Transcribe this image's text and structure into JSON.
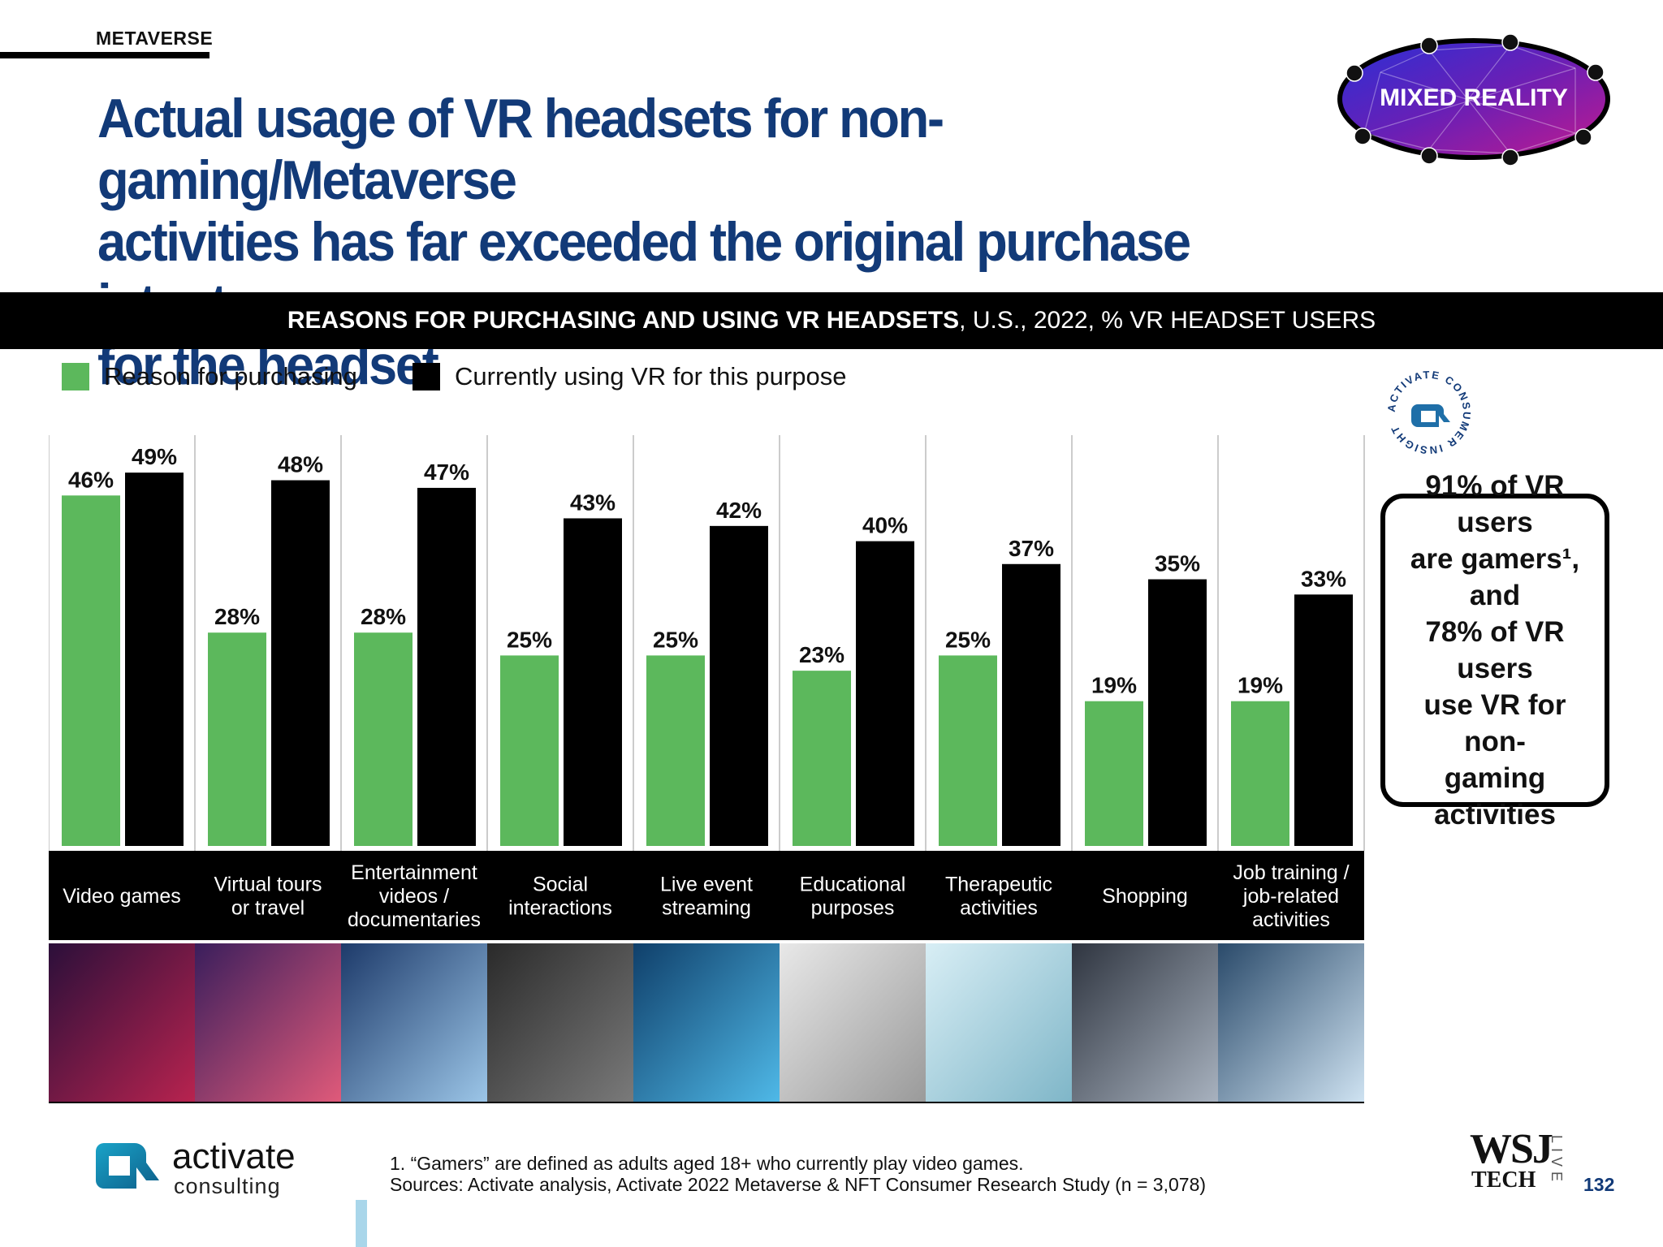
{
  "header": {
    "section": "METAVERSE",
    "title_lines": [
      "Actual usage of VR headsets for non-gaming/Metaverse",
      "activities has far exceeded the original purchase intent",
      "for the headset"
    ],
    "badge": "MIXED REALITY"
  },
  "banner": {
    "bold": "REASONS FOR PURCHASING AND USING VR HEADSETS",
    "rest": ", U.S., 2022, % VR HEADSET USERS"
  },
  "legend": [
    {
      "label": "Reason for purchasing",
      "color": "#5cb85c"
    },
    {
      "label": "Currently using VR for this purpose",
      "color": "#000000"
    }
  ],
  "stamp": {
    "text": "ACTIVATE CONSUMER INSIGHT"
  },
  "callout": {
    "lines": [
      "91% of VR users",
      "are gamers¹, and",
      "78% of VR users",
      "use VR for non-",
      "gaming activities"
    ]
  },
  "chart_data": {
    "type": "bar",
    "categories": [
      [
        "Video games"
      ],
      [
        "Virtual tours",
        "or travel"
      ],
      [
        "Entertainment",
        "videos /",
        "documentaries"
      ],
      [
        "Social",
        "interactions"
      ],
      [
        "Live event",
        "streaming"
      ],
      [
        "Educational",
        "purposes"
      ],
      [
        "Therapeutic",
        "activities"
      ],
      [
        "Shopping"
      ],
      [
        "Job training /",
        "job-related",
        "activities"
      ]
    ],
    "series": [
      {
        "name": "Reason for purchasing",
        "color": "#5cb85c",
        "values": [
          46,
          28,
          28,
          25,
          25,
          23,
          25,
          19,
          19
        ]
      },
      {
        "name": "Currently using VR for this purpose",
        "color": "#000000",
        "values": [
          49,
          48,
          47,
          43,
          42,
          40,
          37,
          35,
          33
        ]
      }
    ],
    "value_suffix": "%",
    "ylim": [
      0,
      52
    ]
  },
  "footer": {
    "footnote": "1. “Gamers” are defined as adults aged 18+ who currently play video games.",
    "sources": "Sources: Activate analysis, Activate 2022 Metaverse & NFT Consumer Research Study (n = 3,078)",
    "logo_word": "activate",
    "logo_sub": "consulting",
    "wsj_top": "WSJ",
    "wsj_bottom": "TECH",
    "wsj_live": "LIVE",
    "page": "132"
  }
}
